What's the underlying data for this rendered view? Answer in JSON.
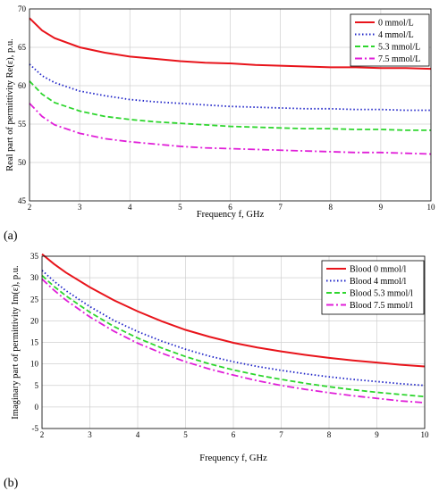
{
  "chart_data": [
    {
      "type": "line",
      "panel_label": "(a)",
      "xlabel": "Frequency f, GHz",
      "ylabel": "Real part of permittivity Re(ε), p.u.",
      "xlim": [
        2,
        10
      ],
      "ylim": [
        45,
        70
      ],
      "xticks": [
        2,
        3,
        4,
        5,
        6,
        7,
        8,
        9,
        10
      ],
      "yticks": [
        45,
        50,
        55,
        60,
        65,
        70
      ],
      "grid": true,
      "legend_position": "top-right",
      "x": [
        2,
        2.25,
        2.5,
        3,
        3.5,
        4,
        4.5,
        5,
        5.5,
        6,
        6.5,
        7,
        7.5,
        8,
        8.5,
        9,
        9.5,
        10
      ],
      "series": [
        {
          "name": "0 mmol/L",
          "color": "#e8141b",
          "dash": "solid",
          "values": [
            68.8,
            67.2,
            66.2,
            65.0,
            64.3,
            63.8,
            63.5,
            63.2,
            63.0,
            62.9,
            62.7,
            62.6,
            62.5,
            62.4,
            62.4,
            62.3,
            62.3,
            62.2
          ]
        },
        {
          "name": "4 mmol/L",
          "color": "#1f24c8",
          "dash": "dotted",
          "values": [
            62.8,
            61.3,
            60.4,
            59.3,
            58.7,
            58.2,
            57.9,
            57.7,
            57.5,
            57.3,
            57.2,
            57.1,
            57.0,
            57.0,
            56.9,
            56.9,
            56.8,
            56.8
          ]
        },
        {
          "name": "5.3 mmol/L",
          "color": "#2ed62e",
          "dash": "dashed",
          "values": [
            60.6,
            58.9,
            57.8,
            56.7,
            56.0,
            55.6,
            55.3,
            55.1,
            54.9,
            54.7,
            54.6,
            54.5,
            54.4,
            54.4,
            54.3,
            54.3,
            54.2,
            54.2
          ]
        },
        {
          "name": "7.5 mmol/L",
          "color": "#e01fd8",
          "dash": "dashdot",
          "values": [
            57.7,
            56.0,
            54.9,
            53.8,
            53.1,
            52.7,
            52.4,
            52.1,
            51.9,
            51.8,
            51.7,
            51.6,
            51.5,
            51.4,
            51.3,
            51.3,
            51.2,
            51.1
          ]
        }
      ]
    },
    {
      "type": "line",
      "panel_label": "(b)",
      "xlabel": "Frequency f, GHz",
      "ylabel": "Imaginary part of permittivity Im(ε), p.u.",
      "xlim": [
        2,
        10
      ],
      "ylim": [
        -5,
        35
      ],
      "xticks": [
        2,
        3,
        4,
        5,
        6,
        7,
        8,
        9,
        10
      ],
      "yticks": [
        -5,
        0,
        5,
        10,
        15,
        20,
        25,
        30,
        35
      ],
      "grid": true,
      "legend_position": "top-right",
      "x": [
        2,
        2.25,
        2.5,
        3,
        3.5,
        4,
        4.5,
        5,
        5.5,
        6,
        6.5,
        7,
        7.5,
        8,
        8.5,
        9,
        9.5,
        10
      ],
      "series": [
        {
          "name": "Blood 0 mmol/l",
          "color": "#e8141b",
          "dash": "solid",
          "values": [
            35.5,
            33.2,
            31.2,
            27.8,
            24.8,
            22.2,
            19.9,
            17.9,
            16.3,
            14.9,
            13.8,
            12.9,
            12.1,
            11.4,
            10.8,
            10.3,
            9.8,
            9.4
          ]
        },
        {
          "name": "Blood 4 mmol/l",
          "color": "#1f24c8",
          "dash": "dotted",
          "values": [
            31.7,
            29.2,
            27.0,
            23.3,
            20.1,
            17.5,
            15.3,
            13.4,
            11.8,
            10.5,
            9.4,
            8.5,
            7.7,
            7.0,
            6.4,
            5.9,
            5.4,
            5.0
          ]
        },
        {
          "name": "Blood 5.3 mmol/l",
          "color": "#2ed62e",
          "dash": "dashed",
          "values": [
            30.5,
            28.0,
            25.8,
            22.0,
            18.7,
            16.0,
            13.7,
            11.7,
            10.0,
            8.6,
            7.4,
            6.4,
            5.5,
            4.7,
            4.0,
            3.4,
            2.9,
            2.4
          ]
        },
        {
          "name": "Blood 7.5 mmol/l",
          "color": "#e01fd8",
          "dash": "dashdot",
          "values": [
            29.7,
            27.1,
            24.8,
            20.9,
            17.6,
            14.8,
            12.5,
            10.5,
            8.8,
            7.4,
            6.1,
            5.0,
            4.1,
            3.3,
            2.6,
            2.0,
            1.4,
            1.0
          ]
        }
      ]
    }
  ]
}
